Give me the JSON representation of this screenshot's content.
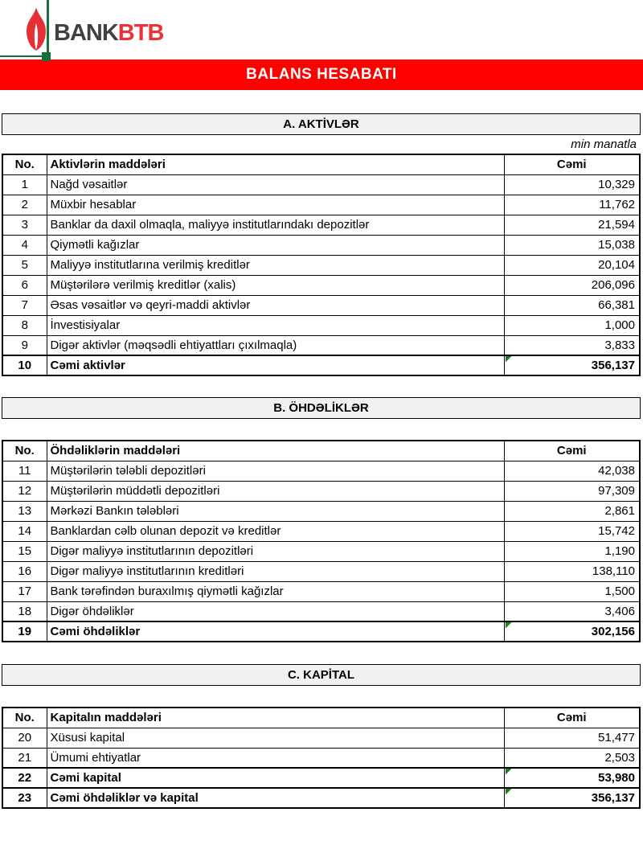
{
  "logo": {
    "bank_text": "BANK",
    "btb_text": "BTB"
  },
  "banner_title": "BALANS HESABATI",
  "unit_note": "min manatla",
  "colors": {
    "banner_red": "#fe0000",
    "logo_green": "#17703c",
    "logo_red": "#ed3237",
    "bank_gray": "#414042",
    "section_bar_bg": "#f1f1f1",
    "marker_green": "#1e7e1e",
    "flame_red": "#e62e34"
  },
  "icons": {
    "flame": "flame-icon",
    "marker": "formula-marker-icon"
  },
  "sections": [
    {
      "title": "A. AKTİVLƏR",
      "col_no": "No.",
      "col_item": "Aktivlərin maddələri",
      "col_total": "Cəmi",
      "rows": [
        {
          "no": "1",
          "item": "Nağd vəsaitlər",
          "value": "10,329"
        },
        {
          "no": "2",
          "item": "Müxbir hesablar",
          "value": "11,762"
        },
        {
          "no": "3",
          "item": "Banklar da daxil olmaqla, maliyyə institutlarındakı depozitlər",
          "value": "21,594"
        },
        {
          "no": "4",
          "item": "Qiymətli kağızlar",
          "value": "15,038"
        },
        {
          "no": "5",
          "item": "Maliyyə institutlarına verilmiş kreditlər",
          "value": "20,104"
        },
        {
          "no": "6",
          "item": "Müştərilərə verilmiş kreditlər (xalis)",
          "value": "206,096"
        },
        {
          "no": "7",
          "item": "Əsas vəsaitlər və qeyri-maddi aktivlər",
          "value": "66,381"
        },
        {
          "no": "8",
          "item": "İnvestisiyalar",
          "value": "1,000"
        },
        {
          "no": "9",
          "item": "Digər aktivlər (məqsədli ehtiyattları çıxılmaqla)",
          "value": "3,833"
        },
        {
          "no": "10",
          "item": "Cəmi aktivlər",
          "value": "356,137",
          "total": true,
          "marker": true
        }
      ]
    },
    {
      "title": "B. ÖHDƏLİKLƏR",
      "col_no": "No.",
      "col_item": "Öhdəliklərin maddələri",
      "col_total": "Cəmi",
      "rows": [
        {
          "no": "11",
          "item": "Müştərilərin tələbli depozitləri",
          "value": "42,038"
        },
        {
          "no": "12",
          "item": "Müştərilərin müddətli depozitləri",
          "value": "97,309"
        },
        {
          "no": "13",
          "item": "Mərkəzi Bankın tələbləri",
          "value": "2,861"
        },
        {
          "no": "14",
          "item": "Banklardan cəlb olunan depozit və kreditlər",
          "value": "15,742"
        },
        {
          "no": "15",
          "item": "Digər maliyyə institutlarının depozitləri",
          "value": "1,190"
        },
        {
          "no": "16",
          "item": "Digər maliyyə institutlarının kreditləri",
          "value": "138,110"
        },
        {
          "no": "17",
          "item": "Bank tərəfindən buraxılmış qiymətli kağızlar",
          "value": "1,500"
        },
        {
          "no": "18",
          "item": "Digər öhdəliklər",
          "value": "3,406"
        },
        {
          "no": "19",
          "item": "Cəmi öhdəliklər",
          "value": "302,156",
          "total": true,
          "marker": true
        }
      ]
    },
    {
      "title": "C. KAPİTAL",
      "col_no": "No.",
      "col_item": "Kapitalın maddələri",
      "col_total": "Cəmi",
      "rows": [
        {
          "no": "20",
          "item": "Xüsusi kapital",
          "value": "51,477"
        },
        {
          "no": "21",
          "item": "Ümumi ehtiyatlar",
          "value": "2,503"
        },
        {
          "no": "22",
          "item": "Cəmi kapital",
          "value": "53,980",
          "total": true,
          "marker": true
        },
        {
          "no": "23",
          "item": "Cəmi öhdəliklər və kapital",
          "value": "356,137",
          "total": true,
          "marker": true
        }
      ]
    }
  ]
}
